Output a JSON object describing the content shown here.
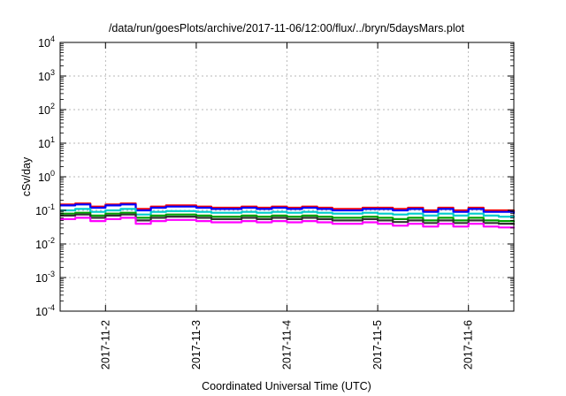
{
  "chart_data": {
    "type": "line",
    "title": "/data/run/goesPlots/archive/2017-11-06/12:00/flux/../bryn/5daysMars.plot",
    "xlabel": "Coordinated Universal Time (UTC)",
    "ylabel": "cSv/day",
    "yscale": "log",
    "ylim": [
      0.0001,
      10000
    ],
    "yticks": [
      {
        "value": 0.0001,
        "base": "10",
        "exp": "-4"
      },
      {
        "value": 0.001,
        "base": "10",
        "exp": "-3"
      },
      {
        "value": 0.01,
        "base": "10",
        "exp": "-2"
      },
      {
        "value": 0.1,
        "base": "10",
        "exp": "-1"
      },
      {
        "value": 1,
        "base": "10",
        "exp": "0"
      },
      {
        "value": 10,
        "base": "10",
        "exp": "1"
      },
      {
        "value": 100,
        "base": "10",
        "exp": "2"
      },
      {
        "value": 1000,
        "base": "10",
        "exp": "3"
      },
      {
        "value": 10000,
        "base": "10",
        "exp": "4"
      }
    ],
    "xlim": [
      "2017-11-01T12:00",
      "2017-11-06T12:00"
    ],
    "xticks": [
      "2017-11-2",
      "2017-11-3",
      "2017-11-4",
      "2017-11-5",
      "2017-11-6"
    ],
    "xtick_values": [
      "2017-11-02",
      "2017-11-03",
      "2017-11-04",
      "2017-11-05",
      "2017-11-06"
    ],
    "grid": true,
    "legend": "none",
    "x": [
      "2017-11-01T12:00",
      "2017-11-01T16:00",
      "2017-11-01T20:00",
      "2017-11-02T00:00",
      "2017-11-02T04:00",
      "2017-11-02T08:00",
      "2017-11-02T12:00",
      "2017-11-02T16:00",
      "2017-11-02T20:00",
      "2017-11-03T00:00",
      "2017-11-03T04:00",
      "2017-11-03T08:00",
      "2017-11-03T12:00",
      "2017-11-03T16:00",
      "2017-11-03T20:00",
      "2017-11-04T00:00",
      "2017-11-04T04:00",
      "2017-11-04T08:00",
      "2017-11-04T12:00",
      "2017-11-04T16:00",
      "2017-11-04T20:00",
      "2017-11-05T00:00",
      "2017-11-05T04:00",
      "2017-11-05T08:00",
      "2017-11-05T12:00",
      "2017-11-05T16:00",
      "2017-11-05T20:00",
      "2017-11-06T00:00",
      "2017-11-06T04:00",
      "2017-11-06T08:00",
      "2017-11-06T12:00"
    ],
    "series": [
      {
        "color": "#ff0000",
        "values": [
          0.15,
          0.16,
          0.13,
          0.15,
          0.16,
          0.11,
          0.13,
          0.14,
          0.14,
          0.13,
          0.12,
          0.12,
          0.13,
          0.12,
          0.13,
          0.12,
          0.13,
          0.12,
          0.11,
          0.11,
          0.12,
          0.12,
          0.11,
          0.12,
          0.1,
          0.12,
          0.1,
          0.12,
          0.1,
          0.1,
          0.09
        ]
      },
      {
        "color": "#0000ff",
        "values": [
          0.14,
          0.15,
          0.12,
          0.14,
          0.15,
          0.1,
          0.12,
          0.13,
          0.13,
          0.12,
          0.11,
          0.11,
          0.12,
          0.11,
          0.12,
          0.11,
          0.12,
          0.11,
          0.1,
          0.1,
          0.11,
          0.11,
          0.1,
          0.11,
          0.09,
          0.11,
          0.09,
          0.11,
          0.09,
          0.09,
          0.08
        ]
      },
      {
        "color": "#00cccc",
        "values": [
          0.1,
          0.11,
          0.09,
          0.1,
          0.11,
          0.075,
          0.09,
          0.095,
          0.095,
          0.09,
          0.085,
          0.085,
          0.09,
          0.085,
          0.09,
          0.085,
          0.09,
          0.085,
          0.08,
          0.08,
          0.085,
          0.08,
          0.075,
          0.08,
          0.07,
          0.08,
          0.07,
          0.08,
          0.07,
          0.065,
          0.06
        ]
      },
      {
        "color": "#00a000",
        "values": [
          0.08,
          0.085,
          0.07,
          0.08,
          0.085,
          0.06,
          0.07,
          0.075,
          0.075,
          0.07,
          0.065,
          0.065,
          0.07,
          0.065,
          0.07,
          0.065,
          0.07,
          0.065,
          0.06,
          0.06,
          0.065,
          0.06,
          0.055,
          0.06,
          0.05,
          0.06,
          0.05,
          0.06,
          0.05,
          0.048,
          0.045
        ]
      },
      {
        "color": "#333333",
        "values": [
          0.07,
          0.075,
          0.06,
          0.07,
          0.075,
          0.05,
          0.06,
          0.065,
          0.065,
          0.06,
          0.055,
          0.055,
          0.06,
          0.055,
          0.06,
          0.055,
          0.06,
          0.055,
          0.05,
          0.05,
          0.055,
          0.05,
          0.045,
          0.05,
          0.042,
          0.05,
          0.042,
          0.05,
          0.042,
          0.04,
          0.037
        ]
      },
      {
        "color": "#ff00ff",
        "values": [
          0.055,
          0.06,
          0.048,
          0.055,
          0.06,
          0.04,
          0.048,
          0.052,
          0.052,
          0.048,
          0.044,
          0.044,
          0.048,
          0.044,
          0.048,
          0.044,
          0.048,
          0.044,
          0.04,
          0.04,
          0.044,
          0.04,
          0.035,
          0.04,
          0.033,
          0.04,
          0.033,
          0.04,
          0.033,
          0.031,
          0.029
        ]
      }
    ]
  }
}
